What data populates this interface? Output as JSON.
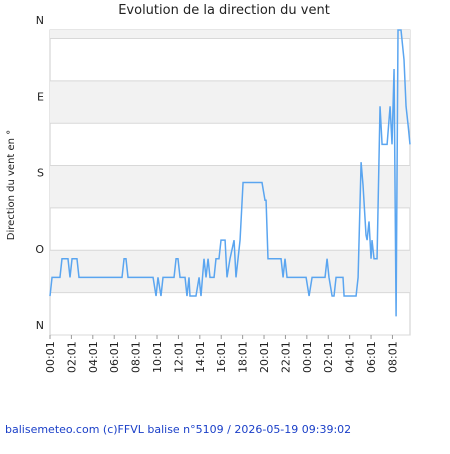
{
  "chart_data": {
    "type": "line",
    "title": "Evolution de la direction du vent",
    "y_label": "Direction du vent en °",
    "footer": "balisemeteo.com (c)FFVL balise n°5109 / 2026-05-19 09:39:02",
    "xlim": [
      0,
      33.64
    ],
    "xticks": [
      {
        "value": 0,
        "label": "00:01"
      },
      {
        "value": 2,
        "label": "02:01"
      },
      {
        "value": 4,
        "label": "04:01"
      },
      {
        "value": 6,
        "label": "06:01"
      },
      {
        "value": 8,
        "label": "08:01"
      },
      {
        "value": 10,
        "label": "10:01"
      },
      {
        "value": 12,
        "label": "12:01"
      },
      {
        "value": 14,
        "label": "14:01"
      },
      {
        "value": 16,
        "label": "16:01"
      },
      {
        "value": 18,
        "label": "18:01"
      },
      {
        "value": 20,
        "label": "20:01"
      },
      {
        "value": 22,
        "label": "22:01"
      },
      {
        "value": 24,
        "label": "00:01"
      },
      {
        "value": 26,
        "label": "02:01"
      },
      {
        "value": 28,
        "label": "04:01"
      },
      {
        "value": 30,
        "label": "06:01"
      },
      {
        "value": 32,
        "label": "08:01"
      }
    ],
    "ylim": [
      0,
      360
    ],
    "yticks": [
      {
        "value": 0,
        "label": "N"
      },
      {
        "value": 90,
        "label": "O"
      },
      {
        "value": 180,
        "label": "S"
      },
      {
        "value": 270,
        "label": "E"
      },
      {
        "value": 360,
        "label": "N"
      }
    ],
    "grid_yticks": [
      0,
      50,
      100,
      150,
      200,
      250,
      300,
      350
    ],
    "grid": true,
    "series": [
      {
        "color": "#5aa5f0",
        "x": [
          0,
          0.19,
          0.93,
          1.12,
          1.68,
          1.87,
          2.06,
          2.52,
          2.71,
          6.73,
          6.92,
          7.1,
          7.29,
          9.63,
          9.91,
          10.09,
          10.37,
          10.56,
          11.59,
          11.78,
          11.96,
          12.15,
          12.62,
          12.8,
          12.99,
          13.08,
          13.64,
          13.93,
          14.11,
          14.39,
          14.58,
          14.77,
          14.95,
          15.33,
          15.51,
          15.79,
          15.98,
          16.36,
          16.54,
          16.82,
          17.2,
          17.38,
          17.76,
          18.04,
          19.81,
          20.09,
          20.19,
          20.37,
          21.59,
          21.78,
          21.96,
          22.15,
          23.93,
          24.21,
          24.49,
          25.7,
          25.89,
          26.07,
          26.36,
          26.54,
          26.73,
          27.38,
          27.48,
          28.6,
          28.79,
          29.07,
          29.25,
          29.53,
          29.63,
          29.81,
          30,
          30.09,
          30.28,
          30.56,
          30.84,
          31.03,
          31.5,
          31.78,
          31.96,
          32.15,
          32.34,
          32.52,
          32.8,
          33.08,
          33.27,
          33.46,
          33.64
        ],
        "values": [
          46,
          68,
          68,
          90,
          90,
          68,
          90,
          90,
          68,
          68,
          90,
          90,
          68,
          68,
          46,
          68,
          46,
          68,
          68,
          90,
          90,
          68,
          68,
          46,
          68,
          46,
          46,
          68,
          46,
          90,
          68,
          90,
          68,
          68,
          90,
          90,
          112,
          112,
          68,
          90,
          112,
          68,
          112,
          180,
          180,
          159,
          159,
          90,
          90,
          68,
          90,
          68,
          68,
          46,
          68,
          68,
          90,
          68,
          46,
          46,
          68,
          68,
          46,
          46,
          68,
          204,
          177,
          118,
          112,
          134,
          90,
          112,
          90,
          90,
          270,
          225,
          225,
          270,
          225,
          314,
          22,
          360,
          360,
          325,
          270,
          248,
          225
        ]
      }
    ]
  }
}
